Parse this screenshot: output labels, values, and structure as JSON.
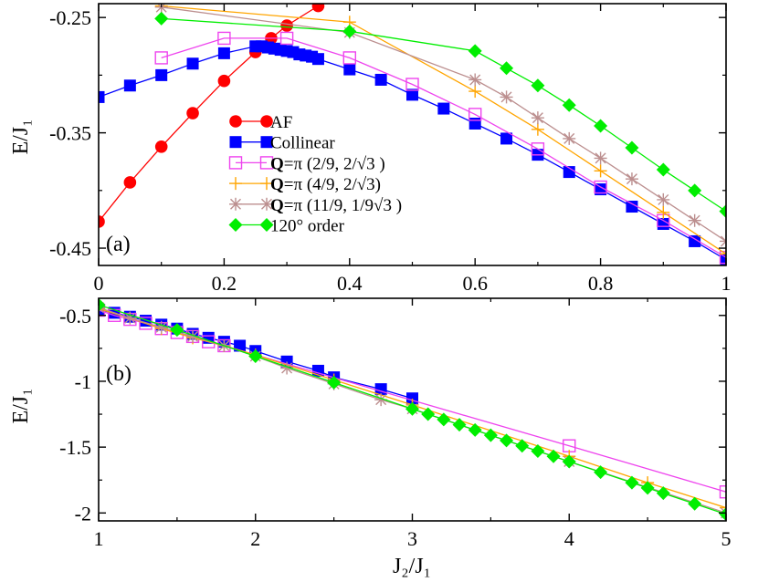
{
  "colors": {
    "af": "#ff0000",
    "collinear": "#0000ff",
    "q1": "#ee44ee",
    "q2": "#ffa500",
    "q3": "#bc8f8f",
    "order120": "#00ee00"
  },
  "chart_data": [
    {
      "type": "line",
      "panel_label": "(a)",
      "xlabel": "",
      "ylabel": "E/J₁",
      "xlim": [
        0,
        1
      ],
      "ylim": [
        -0.465,
        -0.238
      ],
      "xticks": [
        0,
        0.2,
        0.4,
        0.6,
        0.8,
        1
      ],
      "xtick_labels": [
        "0",
        "0.2",
        "0.4",
        "0.6",
        "0.8",
        "1"
      ],
      "yticks": [
        -0.45,
        -0.35,
        -0.25
      ],
      "ytick_labels": [
        "-0.45",
        "-0.35",
        "-0.25"
      ],
      "legend_position": "center-left",
      "series": [
        {
          "key": "af",
          "name": "AF",
          "marker": "circle",
          "x": [
            0,
            0.05,
            0.1,
            0.15,
            0.2,
            0.25,
            0.275,
            0.3,
            0.35
          ],
          "y": [
            -0.427,
            -0.393,
            -0.362,
            -0.333,
            -0.305,
            -0.28,
            -0.268,
            -0.257,
            -0.24
          ]
        },
        {
          "key": "collinear",
          "name": "Collinear",
          "marker": "square",
          "x": [
            0,
            0.05,
            0.1,
            0.15,
            0.2,
            0.25,
            0.26,
            0.27,
            0.28,
            0.29,
            0.3,
            0.31,
            0.32,
            0.33,
            0.34,
            0.35,
            0.4,
            0.45,
            0.5,
            0.55,
            0.6,
            0.65,
            0.7,
            0.75,
            0.8,
            0.85,
            0.9,
            0.95,
            1.0
          ],
          "y": [
            -0.319,
            -0.309,
            -0.3,
            -0.29,
            -0.281,
            -0.275,
            -0.275,
            -0.276,
            -0.277,
            -0.278,
            -0.279,
            -0.28,
            -0.282,
            -0.283,
            -0.284,
            -0.286,
            -0.295,
            -0.304,
            -0.317,
            -0.329,
            -0.342,
            -0.355,
            -0.369,
            -0.384,
            -0.399,
            -0.414,
            -0.429,
            -0.444,
            -0.46
          ]
        },
        {
          "key": "q1",
          "name": "π (2/9, 2/√3 )",
          "marker": "open-square",
          "x": [
            0.1,
            0.2,
            0.3,
            0.4,
            0.5,
            0.6,
            0.7,
            0.8,
            0.9,
            1.0
          ],
          "y": [
            -0.285,
            -0.268,
            -0.268,
            -0.285,
            -0.308,
            -0.334,
            -0.364,
            -0.397,
            -0.426,
            -0.458
          ]
        },
        {
          "key": "q2",
          "name": "π (4/9, 2/√3)",
          "marker": "plus",
          "x": [
            0.1,
            0.4,
            0.6,
            0.7,
            0.8,
            0.9,
            1.0
          ],
          "y": [
            -0.24,
            -0.254,
            -0.314,
            -0.347,
            -0.383,
            -0.419,
            -0.455
          ]
        },
        {
          "key": "q3",
          "name": "π (11/9, 1/9√3 )",
          "marker": "asterisk",
          "x": [
            0.1,
            0.4,
            0.6,
            0.65,
            0.7,
            0.75,
            0.8,
            0.85,
            0.9,
            0.95,
            1.0
          ],
          "y": [
            -0.241,
            -0.263,
            -0.304,
            -0.319,
            -0.337,
            -0.355,
            -0.372,
            -0.39,
            -0.408,
            -0.426,
            -0.444
          ]
        },
        {
          "key": "order120",
          "name": "120° order",
          "marker": "diamond",
          "x": [
            0.1,
            0.4,
            0.6,
            0.65,
            0.7,
            0.75,
            0.8,
            0.85,
            0.9,
            0.95,
            1.0
          ],
          "y": [
            -0.251,
            -0.262,
            -0.279,
            -0.294,
            -0.309,
            -0.326,
            -0.344,
            -0.363,
            -0.382,
            -0.4,
            -0.418
          ]
        }
      ]
    },
    {
      "type": "line",
      "panel_label": "(b)",
      "xlabel": "J₂/J₁",
      "ylabel": "E/J₁",
      "xlim": [
        1,
        5
      ],
      "ylim": [
        -2.06,
        -0.37
      ],
      "xticks": [
        1,
        2,
        3,
        4,
        5
      ],
      "xtick_labels": [
        "1",
        "2",
        "3",
        "4",
        "5"
      ],
      "yticks": [
        -0.5,
        -1,
        -1.5,
        -2
      ],
      "ytick_labels": [
        "-0.5",
        "-1",
        "-1.5",
        "-2"
      ],
      "series": [
        {
          "key": "collinear",
          "marker": "square",
          "x": [
            1,
            1.1,
            1.2,
            1.3,
            1.4,
            1.5,
            1.6,
            1.7,
            1.8,
            1.9,
            2.0,
            2.2,
            2.4,
            2.5,
            2.8,
            3.0
          ],
          "y": [
            -0.46,
            -0.48,
            -0.51,
            -0.54,
            -0.57,
            -0.6,
            -0.64,
            -0.67,
            -0.7,
            -0.73,
            -0.77,
            -0.85,
            -0.92,
            -0.97,
            -1.06,
            -1.13
          ]
        },
        {
          "key": "q1",
          "marker": "open-square",
          "x": [
            1.0,
            1.1,
            1.2,
            1.3,
            1.4,
            1.5,
            1.6,
            1.7,
            1.8,
            4.0,
            5.0
          ],
          "y": [
            -0.46,
            -0.5,
            -0.53,
            -0.56,
            -0.6,
            -0.63,
            -0.66,
            -0.7,
            -0.73,
            -1.49,
            -1.84
          ]
        },
        {
          "key": "q2",
          "marker": "plus",
          "x": [
            1.0,
            1.2,
            1.4,
            1.6,
            1.8,
            2.0,
            2.5,
            3.0,
            4.0,
            4.5,
            5.0
          ],
          "y": [
            -0.45,
            -0.52,
            -0.6,
            -0.67,
            -0.73,
            -0.8,
            -0.99,
            -1.18,
            -1.57,
            -1.77,
            -1.96
          ]
        },
        {
          "key": "q3",
          "marker": "asterisk",
          "x": [
            1.0,
            1.2,
            1.4,
            1.6,
            1.8,
            2.0,
            2.2,
            2.5,
            2.8,
            3.0,
            4.0,
            5.0
          ],
          "y": [
            -0.44,
            -0.52,
            -0.59,
            -0.66,
            -0.73,
            -0.81,
            -0.9,
            -1.02,
            -1.14,
            -1.21,
            -1.61,
            -2.0
          ]
        },
        {
          "key": "order120",
          "marker": "diamond",
          "x": [
            1.0,
            1.5,
            2.0,
            2.5,
            3.0,
            3.1,
            3.2,
            3.3,
            3.4,
            3.5,
            3.6,
            3.7,
            3.8,
            3.9,
            4.0,
            4.2,
            4.4,
            4.5,
            4.6,
            4.8,
            5.0
          ],
          "y": [
            -0.42,
            -0.61,
            -0.81,
            -1.01,
            -1.21,
            -1.25,
            -1.29,
            -1.33,
            -1.37,
            -1.41,
            -1.45,
            -1.49,
            -1.53,
            -1.57,
            -1.61,
            -1.69,
            -1.77,
            -1.81,
            -1.85,
            -1.93,
            -2.01
          ]
        }
      ]
    }
  ]
}
